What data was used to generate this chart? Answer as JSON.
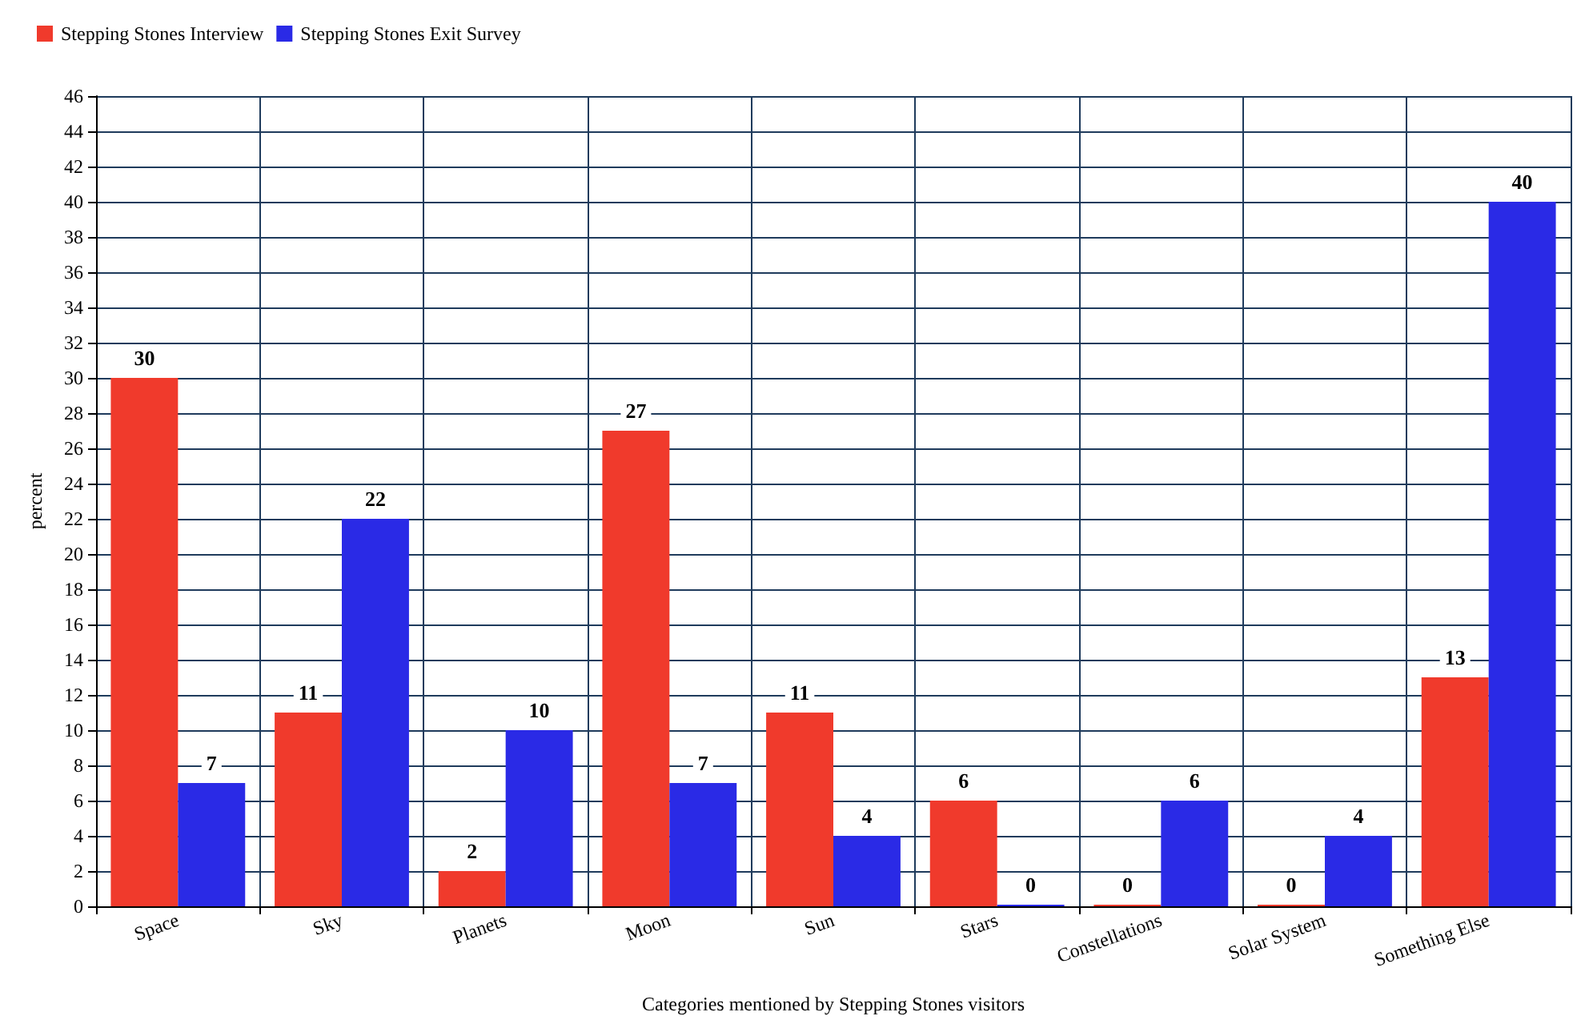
{
  "chart_data": {
    "type": "bar",
    "xlabel": "Categories mentioned by Stepping Stones visitors",
    "ylabel": "percent",
    "categories": [
      "Space",
      "Sky",
      "Planets",
      "Moon",
      "Sun",
      "Stars",
      "Constellations",
      "Solar System",
      "Something Else"
    ],
    "series": [
      {
        "name": "Stepping Stones Interview",
        "color": "#f03a2c",
        "values": [
          30,
          11,
          2,
          27,
          11,
          6,
          0,
          0,
          13
        ]
      },
      {
        "name": "Stepping Stones Exit Survey",
        "color": "#2a2ae6",
        "values": [
          7,
          22,
          10,
          7,
          4,
          0,
          6,
          4,
          40
        ]
      }
    ],
    "ylim": [
      0,
      46
    ],
    "yticks": [
      0,
      2,
      4,
      6,
      8,
      10,
      12,
      14,
      16,
      18,
      20,
      22,
      24,
      26,
      28,
      30,
      32,
      34,
      36,
      38,
      40,
      42,
      44,
      46
    ],
    "grid": true,
    "legend": "top left",
    "data_labels": true
  }
}
